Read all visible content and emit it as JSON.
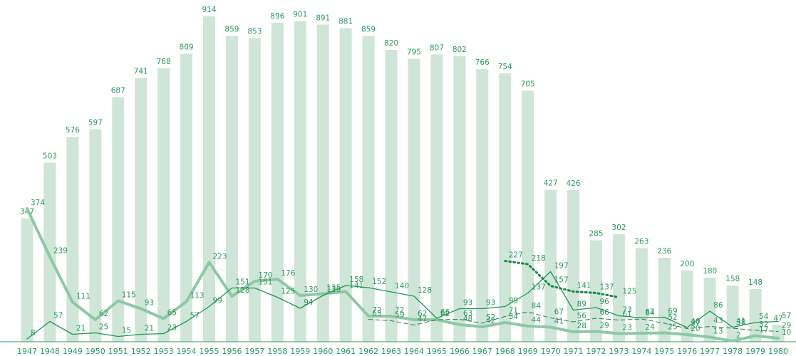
{
  "chart_data": {
    "type": "bar_line",
    "categories": [
      "1947",
      "1948",
      "1949",
      "1950",
      "1951",
      "1952",
      "1953",
      "1954",
      "1955",
      "1956",
      "1957",
      "1958",
      "1959",
      "1960",
      "1961",
      "1962",
      "1963",
      "1964",
      "1965",
      "1966",
      "1967",
      "1968",
      "1969",
      "1970",
      "1971",
      "1972",
      "1973",
      "1974",
      "1975",
      "1976",
      "1977",
      "1978",
      "1979",
      "1980"
    ],
    "values": [
      347,
      503,
      576,
      597,
      687,
      741,
      768,
      809,
      914,
      859,
      853,
      896,
      901,
      891,
      881,
      859,
      820,
      795,
      807,
      802,
      766,
      754,
      705,
      427,
      426,
      285,
      302,
      263,
      236,
      200,
      180,
      158,
      148,
      47
    ],
    "color": "#cfe5d8",
    "series": [
      {
        "color": "#8cc9a3",
        "style": "thick",
        "values": [
          374,
          239,
          111,
          62,
          115,
          93,
          65,
          113,
          223,
          128,
          170,
          176,
          130,
          135,
          141,
          72,
          72,
          62,
          62,
          48,
          42,
          54,
          44,
          41,
          28,
          29,
          23,
          24,
          25,
          20,
          13,
          2,
          17,
          10
        ]
      },
      {
        "color": "#1a9a4f",
        "style": "solid",
        "values": [
          8,
          57,
          21,
          25,
          15,
          21,
          23,
          57,
          99,
          151,
          151,
          125,
          94,
          130,
          158,
          152,
          140,
          128,
          66,
          93,
          93,
          99,
          137,
          197,
          89,
          96,
          73,
          67,
          69,
          40,
          86,
          41,
          54,
          57
        ]
      },
      {
        "color": "#2e7d4f",
        "style": "dashed",
        "values": [
          null,
          null,
          null,
          null,
          null,
          null,
          null,
          null,
          null,
          null,
          null,
          null,
          null,
          null,
          null,
          63,
          59,
          47,
          62,
          63,
          52,
          71,
          84,
          67,
          56,
          66,
          61,
          64,
          52,
          37,
          43,
          38,
          32,
          29
        ]
      },
      {
        "color": "#138a3e",
        "style": "dotted",
        "values": [
          null,
          null,
          null,
          null,
          null,
          null,
          null,
          null,
          null,
          null,
          null,
          null,
          null,
          null,
          null,
          null,
          null,
          null,
          null,
          null,
          null,
          227,
          218,
          157,
          141,
          137,
          125,
          null,
          null,
          null,
          null,
          null,
          null,
          null
        ]
      }
    ],
    "ylim": [
      0,
      960
    ]
  }
}
